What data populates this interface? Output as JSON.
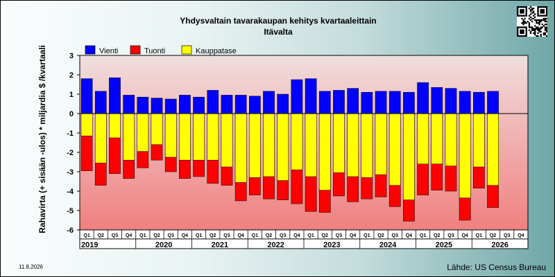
{
  "title": "Yhdysvaltain tavarakaupan kehitys kvartaaleittain",
  "subtitle": "Itävalta",
  "date_stamp": "11.8.2026",
  "source": "Lähde: US Census Bureau",
  "colors": {
    "export": "#0000ff",
    "import": "#ff0000",
    "balance": "#ffff00",
    "plot_top": "#f0dede",
    "plot_bottom": "#f08080"
  },
  "chart_data": {
    "type": "bar",
    "title": "Yhdysvaltain tavarakaupan kehitys kvartaaleittain",
    "subtitle": "Itävalta",
    "ylabel": "Rahavirta (+ sisään -ulos)  * miljardia $ /kvartaali",
    "ylim": [
      -6,
      3
    ],
    "yticks": [
      3,
      2,
      1,
      0,
      -1,
      -2,
      -3,
      -4,
      -5,
      -6
    ],
    "legend_position": "top-left",
    "categories": [
      "Q1",
      "Q2",
      "Q3",
      "Q4",
      "Q1",
      "Q2",
      "Q3",
      "Q4",
      "Q1",
      "Q2",
      "Q3",
      "Q4",
      "Q1",
      "Q2",
      "Q3",
      "Q4",
      "Q1",
      "Q2",
      "Q3",
      "Q4",
      "Q1",
      "Q2",
      "Q3",
      "Q4",
      "Q1",
      "Q2",
      "Q3",
      "Q4",
      "Q1",
      "Q2",
      "Q3",
      "Q4"
    ],
    "years": [
      "2019",
      "2020",
      "2021",
      "2022",
      "2023",
      "2024",
      "2025",
      "2026"
    ],
    "series": [
      {
        "name": "Vienti",
        "values": [
          1.8,
          1.15,
          1.85,
          0.95,
          0.85,
          0.8,
          0.75,
          0.95,
          0.85,
          1.2,
          0.95,
          0.95,
          0.9,
          1.15,
          1.0,
          1.75,
          1.8,
          1.15,
          1.2,
          1.3,
          1.1,
          1.15,
          1.15,
          1.1,
          1.6,
          1.35,
          1.3,
          1.15,
          1.1,
          1.15,
          null,
          null
        ]
      },
      {
        "name": "Tuonti",
        "values": [
          -2.95,
          -3.7,
          -3.1,
          -3.35,
          -2.8,
          -2.4,
          -3.0,
          -3.35,
          -3.25,
          -3.6,
          -3.7,
          -4.5,
          -4.2,
          -4.4,
          -4.45,
          -4.65,
          -5.05,
          -5.1,
          -4.25,
          -4.55,
          -4.4,
          -4.3,
          -4.8,
          -5.55,
          -4.2,
          -3.95,
          -4.0,
          -5.5,
          -3.85,
          -4.85,
          null,
          null
        ]
      },
      {
        "name": "Kauppatase",
        "values": [
          -1.15,
          -2.55,
          -1.25,
          -2.4,
          -1.95,
          -1.6,
          -2.25,
          -2.4,
          -2.4,
          -2.4,
          -2.75,
          -3.55,
          -3.3,
          -3.25,
          -3.45,
          -2.9,
          -3.25,
          -3.95,
          -3.05,
          -3.25,
          -3.3,
          -3.15,
          -3.7,
          -4.45,
          -2.6,
          -2.6,
          -2.7,
          -4.35,
          -2.75,
          -3.7,
          null,
          null
        ]
      }
    ]
  }
}
